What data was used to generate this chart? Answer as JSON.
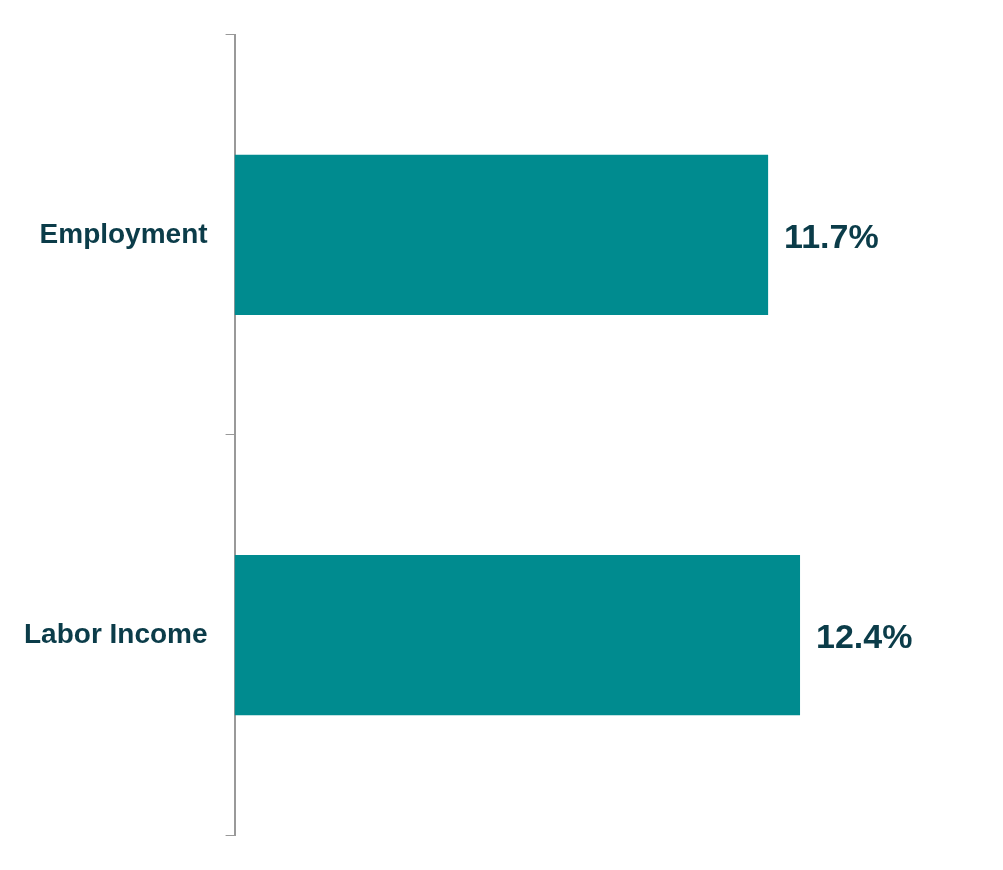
{
  "chart_data": {
    "type": "bar",
    "orientation": "horizontal",
    "categories": [
      "Employment",
      "Labor Income"
    ],
    "values": [
      11.7,
      12.4
    ],
    "color": "#008b8f",
    "value_labels": [
      "11.7%",
      "12.4%"
    ]
  }
}
